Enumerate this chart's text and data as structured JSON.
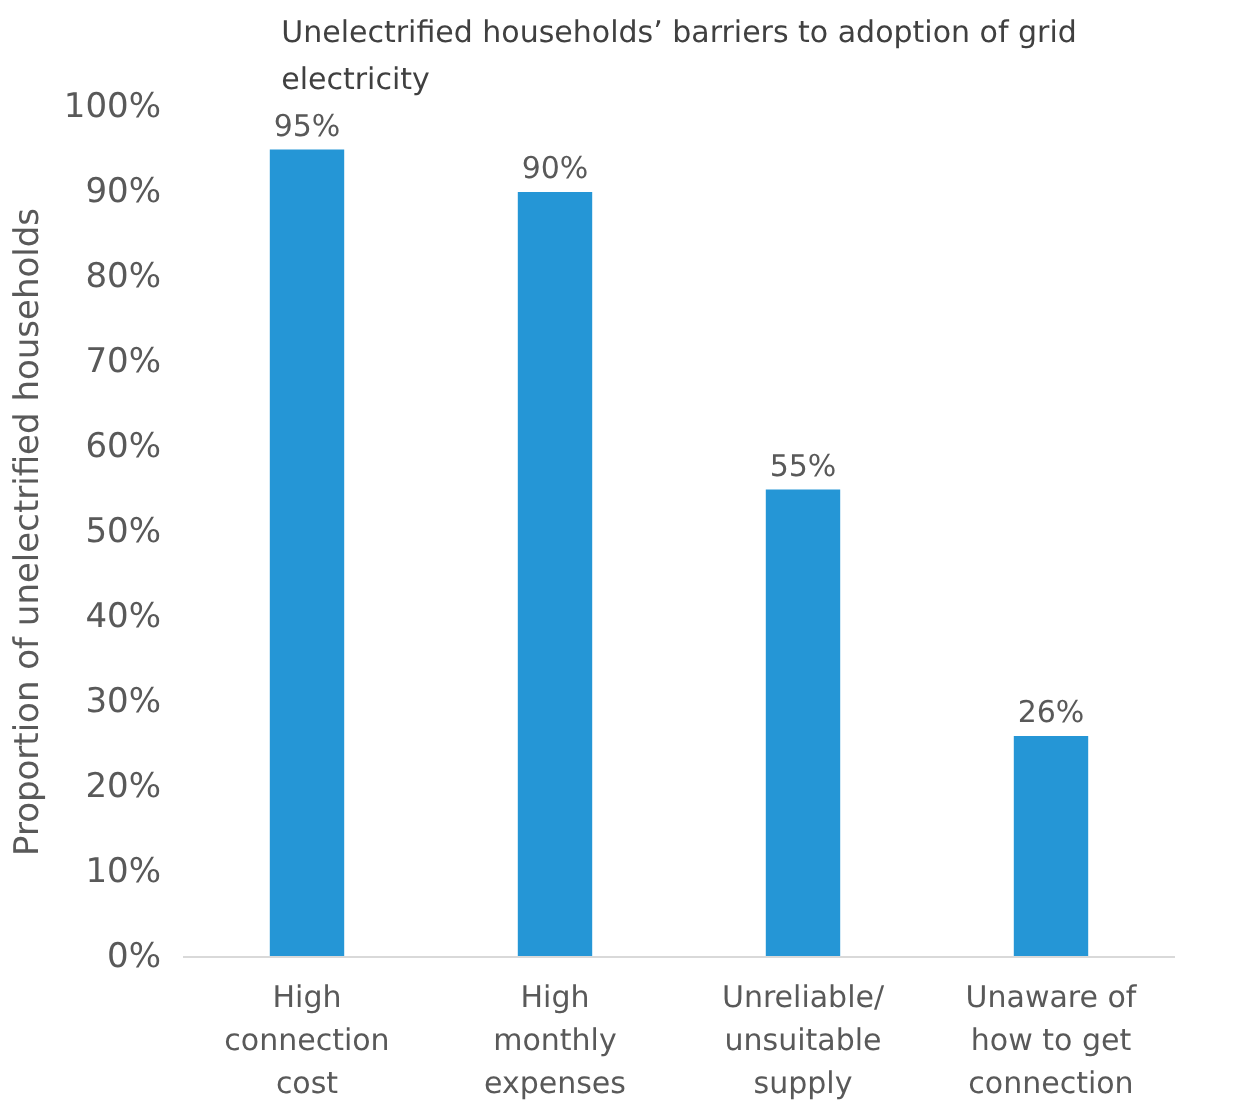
{
  "chart_data": {
    "type": "bar",
    "title": "Unelectrified households’ barriers to adoption of grid electricity",
    "ylabel": "Proportion of unelectrified households",
    "categories": [
      "High connection cost",
      "High monthly expenses",
      "Unreliable/ unsuitable supply",
      "Unaware of how to get connection"
    ],
    "values": [
      95,
      90,
      55,
      26
    ],
    "value_labels": [
      "95%",
      "90%",
      "55%",
      "26%"
    ],
    "color": "#2596d6",
    "ylim": [
      0,
      100
    ],
    "yticks": [
      {
        "value": 0,
        "label": "0%"
      },
      {
        "value": 10,
        "label": "10%"
      },
      {
        "value": 20,
        "label": "20%"
      },
      {
        "value": 30,
        "label": "30%"
      },
      {
        "value": 40,
        "label": "40%"
      },
      {
        "value": 50,
        "label": "50%"
      },
      {
        "value": 60,
        "label": "60%"
      },
      {
        "value": 70,
        "label": "70%"
      },
      {
        "value": 80,
        "label": "80%"
      },
      {
        "value": 90,
        "label": "90%"
      },
      {
        "value": 100,
        "label": "100%"
      }
    ],
    "grid": false
  }
}
